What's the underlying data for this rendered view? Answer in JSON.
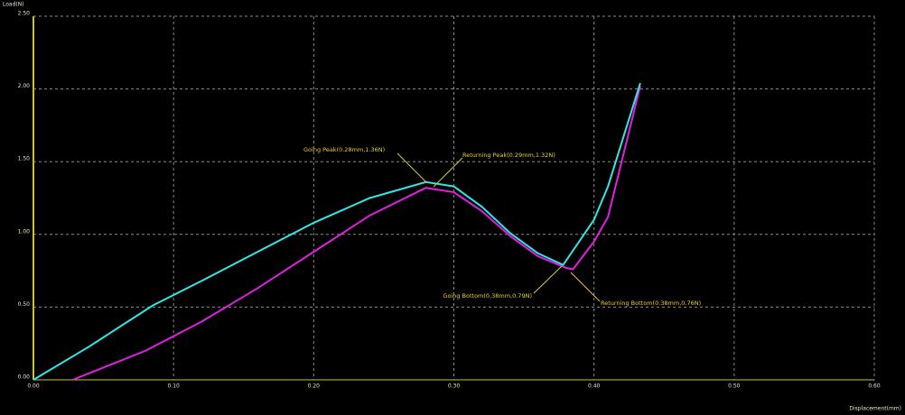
{
  "chart_data": {
    "type": "line",
    "ylabel": "Load(N)",
    "xlabel": "Displacement(mm)",
    "xlim": [
      0,
      0.6
    ],
    "ylim": [
      0,
      2.5
    ],
    "xticks": [
      {
        "value": 0,
        "label": "0.00"
      },
      {
        "value": 0.1,
        "label": "0.10"
      },
      {
        "value": 0.2,
        "label": "0.20"
      },
      {
        "value": 0.3,
        "label": "0.30"
      },
      {
        "value": 0.4,
        "label": "0.40"
      },
      {
        "value": 0.5,
        "label": "0.50"
      },
      {
        "value": 0.6,
        "label": "0.60"
      }
    ],
    "yticks": [
      {
        "value": 0,
        "label": "0.00"
      },
      {
        "value": 0.5,
        "label": "0.50"
      },
      {
        "value": 1,
        "label": "1.00"
      },
      {
        "value": 1.5,
        "label": "1.50"
      },
      {
        "value": 2,
        "label": "2.00"
      },
      {
        "value": 2.5,
        "label": "2.50"
      }
    ],
    "grid": true,
    "series": [
      {
        "color": "#33e6e6",
        "x": [
          0,
          0.04,
          0.085,
          0.12,
          0.16,
          0.2,
          0.24,
          0.28,
          0.3,
          0.32,
          0.34,
          0.36,
          0.378,
          0.4,
          0.41,
          0.433
        ],
        "values": [
          0,
          0.23,
          0.51,
          0.68,
          0.88,
          1.08,
          1.25,
          1.36,
          1.33,
          1.19,
          1.01,
          0.87,
          0.79,
          1.1,
          1.33,
          2.04
        ]
      },
      {
        "color": "#e020e0",
        "x": [
          0.028,
          0.08,
          0.12,
          0.16,
          0.2,
          0.24,
          0.28,
          0.3,
          0.32,
          0.34,
          0.36,
          0.38,
          0.385,
          0.4,
          0.41,
          0.433
        ],
        "values": [
          0,
          0.2,
          0.4,
          0.63,
          0.88,
          1.13,
          1.32,
          1.29,
          1.16,
          0.99,
          0.85,
          0.77,
          0.76,
          0.95,
          1.12,
          2.02
        ]
      }
    ],
    "annotations": [
      "Going Peak(0.28mm,1.36N)",
      "Returning Peak(0.29mm,1.32N)",
      "Going Bottom(0.38mm,0.79N)",
      "Returning Bottom(0.38mm,0.76N)"
    ]
  }
}
